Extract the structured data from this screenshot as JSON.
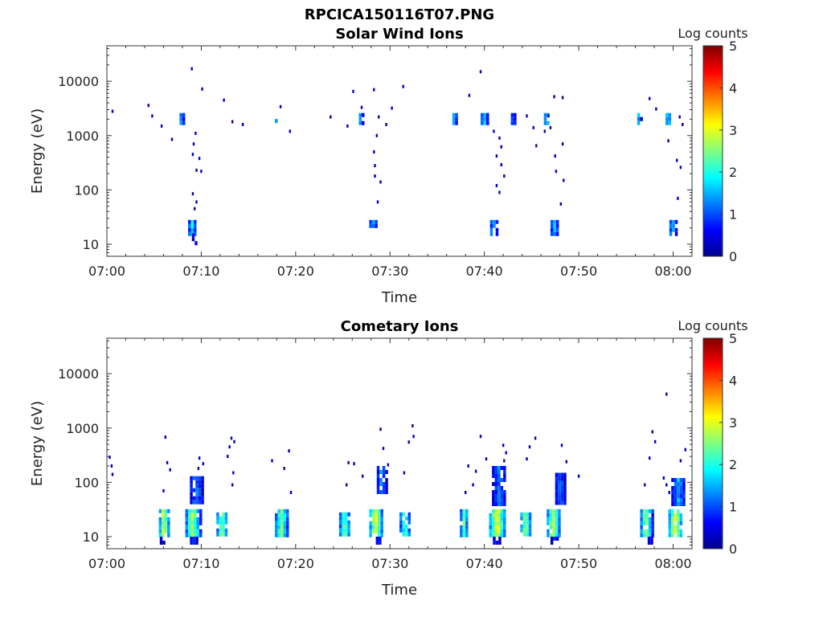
{
  "figure_title": "RPCICA150116T07.PNG",
  "chart_data": [
    {
      "type": "heatmap",
      "title": "Solar Wind Ions",
      "xlabel": "Time",
      "ylabel": "Energy (eV)",
      "yscale": "log",
      "ylim": [
        6,
        45000
      ],
      "xlim_min": [
        0,
        62
      ],
      "xticks": [
        "07:00",
        "07:10",
        "07:20",
        "07:30",
        "07:40",
        "07:50",
        "08:00"
      ],
      "xtick_minutes": [
        0,
        10,
        20,
        30,
        40,
        50,
        60
      ],
      "yticks": [
        "10",
        "100",
        "1000",
        "10000"
      ],
      "ytick_values": [
        10,
        100,
        1000,
        10000
      ],
      "colorbar": {
        "label": "Log counts",
        "range": [
          0,
          5
        ],
        "ticks": [
          "0",
          "1",
          "2",
          "3",
          "4",
          "5"
        ]
      },
      "clusters": [
        {
          "t": [
            7.7,
            8.2
          ],
          "e": [
            1700,
            2600
          ],
          "level": 1.5
        },
        {
          "t": [
            17.8,
            18.1
          ],
          "e": [
            1700,
            2400
          ],
          "level": 1.0
        },
        {
          "t": [
            26.7,
            27.1
          ],
          "e": [
            1700,
            2600
          ],
          "level": 1.5
        },
        {
          "t": [
            36.6,
            37.1
          ],
          "e": [
            1700,
            2600
          ],
          "level": 1.6
        },
        {
          "t": [
            39.6,
            40.3
          ],
          "e": [
            1700,
            2600
          ],
          "level": 1.8
        },
        {
          "t": [
            42.8,
            43.3
          ],
          "e": [
            1700,
            2600
          ],
          "level": 1.2
        },
        {
          "t": [
            46.3,
            46.9
          ],
          "e": [
            1700,
            2600
          ],
          "level": 1.6
        },
        {
          "t": [
            56.2,
            56.6
          ],
          "e": [
            1700,
            2600
          ],
          "level": 1.5
        },
        {
          "t": [
            59.2,
            59.8
          ],
          "e": [
            1700,
            2600
          ],
          "level": 2.0
        },
        {
          "t": [
            8.6,
            9.5
          ],
          "e": [
            16,
            28
          ],
          "level": 1.5
        },
        {
          "t": [
            9.0,
            9.5
          ],
          "e": [
            10,
            16
          ],
          "level": 0.6
        },
        {
          "t": [
            27.8,
            28.6
          ],
          "e": [
            20,
            28
          ],
          "level": 1.4
        },
        {
          "t": [
            40.6,
            41.4
          ],
          "e": [
            14,
            28
          ],
          "level": 1.5
        },
        {
          "t": [
            47.0,
            47.9
          ],
          "e": [
            14,
            28
          ],
          "level": 1.3
        },
        {
          "t": [
            59.6,
            60.3
          ],
          "e": [
            16,
            28
          ],
          "level": 1.4
        }
      ],
      "points": [
        [
          0.6,
          2800
        ],
        [
          4.4,
          3600
        ],
        [
          4.8,
          2300
        ],
        [
          5.8,
          1500
        ],
        [
          6.9,
          850
        ],
        [
          9.0,
          17000
        ],
        [
          10.1,
          7200
        ],
        [
          12.4,
          4500
        ],
        [
          13.3,
          1800
        ],
        [
          9.4,
          1100
        ],
        [
          9.2,
          700
        ],
        [
          9.1,
          450
        ],
        [
          9.8,
          380
        ],
        [
          9.5,
          230
        ],
        [
          10.0,
          220
        ],
        [
          9.1,
          85
        ],
        [
          9.5,
          60
        ],
        [
          9.3,
          45
        ],
        [
          14.4,
          1600
        ],
        [
          18.4,
          3400
        ],
        [
          19.4,
          1200
        ],
        [
          23.7,
          2200
        ],
        [
          25.5,
          1500
        ],
        [
          26.1,
          6500
        ],
        [
          27.0,
          3300
        ],
        [
          28.3,
          7000
        ],
        [
          28.8,
          2200
        ],
        [
          30.2,
          3200
        ],
        [
          31.4,
          8000
        ],
        [
          29.6,
          1600
        ],
        [
          28.6,
          1000
        ],
        [
          28.3,
          500
        ],
        [
          28.4,
          280
        ],
        [
          28.4,
          180
        ],
        [
          29.0,
          140
        ],
        [
          28.7,
          60
        ],
        [
          39.6,
          15000
        ],
        [
          38.4,
          5500
        ],
        [
          41.0,
          1200
        ],
        [
          41.6,
          900
        ],
        [
          41.8,
          620
        ],
        [
          41.3,
          420
        ],
        [
          41.8,
          290
        ],
        [
          42.1,
          180
        ],
        [
          41.3,
          120
        ],
        [
          41.6,
          90
        ],
        [
          44.5,
          2300
        ],
        [
          45.2,
          1400
        ],
        [
          45.5,
          650
        ],
        [
          46.8,
          2300
        ],
        [
          47.4,
          5200
        ],
        [
          48.3,
          5000
        ],
        [
          47.0,
          1400
        ],
        [
          48.3,
          700
        ],
        [
          46.4,
          1200
        ],
        [
          47.5,
          420
        ],
        [
          47.6,
          220
        ],
        [
          48.4,
          150
        ],
        [
          48.1,
          55
        ],
        [
          57.5,
          4800
        ],
        [
          58.2,
          3100
        ],
        [
          60.7,
          2200
        ],
        [
          61.0,
          1600
        ],
        [
          59.5,
          800
        ],
        [
          60.4,
          350
        ],
        [
          60.8,
          260
        ],
        [
          60.5,
          70
        ]
      ]
    },
    {
      "type": "heatmap",
      "title": "Cometary Ions",
      "xlabel": "Time",
      "ylabel": "Energy (eV)",
      "yscale": "log",
      "ylim": [
        6,
        45000
      ],
      "xlim_min": [
        0,
        62
      ],
      "xticks": [
        "07:00",
        "07:10",
        "07:20",
        "07:30",
        "07:40",
        "07:50",
        "08:00"
      ],
      "xtick_minutes": [
        0,
        10,
        20,
        30,
        40,
        50,
        60
      ],
      "yticks": [
        "10",
        "100",
        "1000",
        "10000"
      ],
      "ytick_values": [
        10,
        100,
        1000,
        10000
      ],
      "colorbar": {
        "label": "Log counts",
        "range": [
          0,
          5
        ],
        "ticks": [
          "0",
          "1",
          "2",
          "3",
          "4",
          "5"
        ]
      },
      "clusters": [
        {
          "t": [
            5.5,
            6.6
          ],
          "e": [
            10,
            32
          ],
          "level": 2.6
        },
        {
          "t": [
            8.3,
            9.9
          ],
          "e": [
            10,
            32
          ],
          "level": 2.4
        },
        {
          "t": [
            11.6,
            12.8
          ],
          "e": [
            10,
            28
          ],
          "level": 2.3
        },
        {
          "t": [
            17.8,
            19.2
          ],
          "e": [
            10,
            32
          ],
          "level": 2.2
        },
        {
          "t": [
            24.6,
            25.8
          ],
          "e": [
            10,
            28
          ],
          "level": 2.1
        },
        {
          "t": [
            27.8,
            29.2
          ],
          "e": [
            10,
            32
          ],
          "level": 2.7
        },
        {
          "t": [
            31.0,
            32.2
          ],
          "e": [
            10,
            28
          ],
          "level": 2.0
        },
        {
          "t": [
            37.4,
            38.3
          ],
          "e": [
            10,
            32
          ],
          "level": 2.0
        },
        {
          "t": [
            40.5,
            42.2
          ],
          "e": [
            10,
            32
          ],
          "level": 2.8
        },
        {
          "t": [
            43.8,
            45.0
          ],
          "e": [
            10,
            28
          ],
          "level": 2.3
        },
        {
          "t": [
            46.6,
            48.0
          ],
          "e": [
            10,
            32
          ],
          "level": 2.5
        },
        {
          "t": [
            56.5,
            57.8
          ],
          "e": [
            10,
            32
          ],
          "level": 2.3
        },
        {
          "t": [
            59.5,
            61.0
          ],
          "e": [
            10,
            32
          ],
          "level": 2.7
        },
        {
          "t": [
            5.6,
            6.0
          ],
          "e": [
            7,
            10
          ],
          "level": 0.6
        },
        {
          "t": [
            8.8,
            9.6
          ],
          "e": [
            7,
            10
          ],
          "level": 0.7
        },
        {
          "t": [
            28.5,
            29.2
          ],
          "e": [
            7,
            10
          ],
          "level": 0.7
        },
        {
          "t": [
            40.9,
            41.8
          ],
          "e": [
            7,
            10
          ],
          "level": 0.7
        },
        {
          "t": [
            47.0,
            47.9
          ],
          "e": [
            7,
            10
          ],
          "level": 0.6
        },
        {
          "t": [
            57.3,
            57.8
          ],
          "e": [
            7,
            10
          ],
          "level": 0.7
        },
        {
          "t": [
            8.8,
            10.2
          ],
          "e": [
            40,
            130
          ],
          "level": 1.0
        },
        {
          "t": [
            28.6,
            29.6
          ],
          "e": [
            60,
            200
          ],
          "level": 1.2
        },
        {
          "t": [
            40.8,
            42.3
          ],
          "e": [
            40,
            200
          ],
          "level": 1.0
        },
        {
          "t": [
            47.5,
            48.6
          ],
          "e": [
            40,
            150
          ],
          "level": 1.0
        },
        {
          "t": [
            59.8,
            61.3
          ],
          "e": [
            40,
            120
          ],
          "level": 1.2
        }
      ],
      "points": [
        [
          0.3,
          290
        ],
        [
          0.5,
          200
        ],
        [
          0.6,
          140
        ],
        [
          6.2,
          680
        ],
        [
          6.4,
          230
        ],
        [
          6.7,
          170
        ],
        [
          6.0,
          70
        ],
        [
          9.8,
          280
        ],
        [
          10.2,
          220
        ],
        [
          9.7,
          180
        ],
        [
          13.2,
          650
        ],
        [
          13.5,
          560
        ],
        [
          13.0,
          450
        ],
        [
          12.8,
          300
        ],
        [
          13.4,
          150
        ],
        [
          13.3,
          90
        ],
        [
          17.5,
          250
        ],
        [
          19.3,
          380
        ],
        [
          18.8,
          180
        ],
        [
          19.5,
          65
        ],
        [
          25.6,
          230
        ],
        [
          26.2,
          220
        ],
        [
          25.4,
          90
        ],
        [
          27.1,
          130
        ],
        [
          29.0,
          950
        ],
        [
          29.3,
          420
        ],
        [
          29.8,
          210
        ],
        [
          31.5,
          150
        ],
        [
          32.4,
          1100
        ],
        [
          32.5,
          700
        ],
        [
          32.0,
          550
        ],
        [
          38.3,
          200
        ],
        [
          39.1,
          160
        ],
        [
          38.8,
          90
        ],
        [
          38.0,
          65
        ],
        [
          39.6,
          700
        ],
        [
          40.2,
          270
        ],
        [
          42.0,
          480
        ],
        [
          42.3,
          350
        ],
        [
          42.1,
          250
        ],
        [
          44.8,
          450
        ],
        [
          45.4,
          650
        ],
        [
          44.5,
          270
        ],
        [
          48.2,
          480
        ],
        [
          48.7,
          240
        ],
        [
          50.0,
          130
        ],
        [
          57.8,
          850
        ],
        [
          58.1,
          560
        ],
        [
          57.5,
          280
        ],
        [
          57.0,
          90
        ],
        [
          60.8,
          250
        ],
        [
          61.3,
          400
        ],
        [
          59.0,
          120
        ],
        [
          59.3,
          90
        ],
        [
          59.6,
          65
        ],
        [
          59.3,
          4200
        ]
      ]
    }
  ]
}
